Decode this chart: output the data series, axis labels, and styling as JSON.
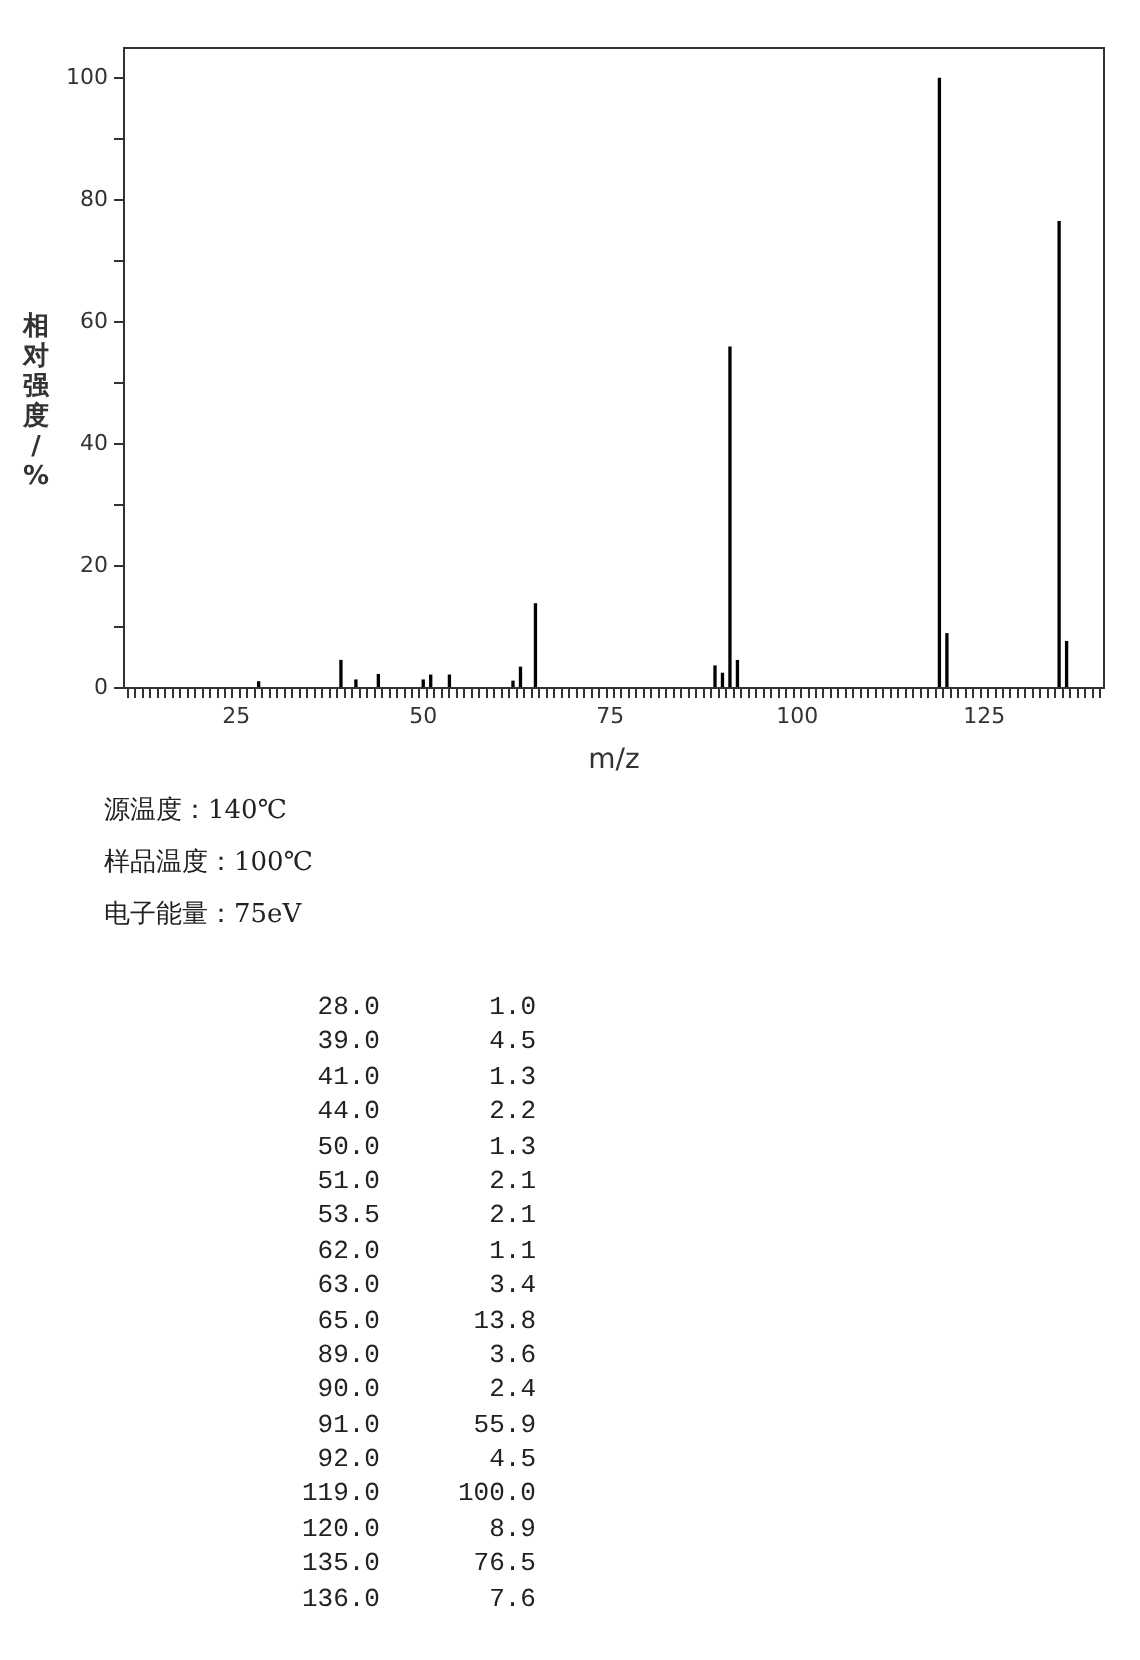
{
  "chart_data": {
    "type": "bar",
    "xlabel": "m/z",
    "ylabel": "相对强度/%",
    "x": [
      28.0,
      39.0,
      41.0,
      44.0,
      50.0,
      51.0,
      53.5,
      62.0,
      63.0,
      65.0,
      89.0,
      90.0,
      91.0,
      92.0,
      119.0,
      120.0,
      135.0,
      136.0
    ],
    "series": [
      {
        "color": "#000000",
        "values": [
          1.0,
          4.5,
          1.3,
          2.2,
          1.3,
          2.1,
          2.1,
          1.1,
          3.4,
          13.8,
          3.6,
          2.4,
          55.9,
          4.5,
          100.0,
          8.9,
          76.5,
          7.6
        ]
      }
    ],
    "xlim": [
      10,
      141
    ],
    "ylim": [
      0,
      105
    ],
    "xticks": [
      {
        "value": 11,
        "label": null
      },
      {
        "value": 12,
        "label": null
      },
      {
        "value": 13,
        "label": null
      },
      {
        "value": 14,
        "label": null
      },
      {
        "value": 15,
        "label": null
      },
      {
        "value": 16,
        "label": null
      },
      {
        "value": 17,
        "label": null
      },
      {
        "value": 18,
        "label": null
      },
      {
        "value": 19,
        "label": null
      },
      {
        "value": 20,
        "label": null
      },
      {
        "value": 21,
        "label": null
      },
      {
        "value": 22,
        "label": null
      },
      {
        "value": 23,
        "label": null
      },
      {
        "value": 24,
        "label": null
      },
      25,
      {
        "value": 26,
        "label": null
      },
      {
        "value": 27,
        "label": null
      },
      {
        "value": 28,
        "label": null
      },
      {
        "value": 29,
        "label": null
      },
      {
        "value": 30,
        "label": null
      },
      {
        "value": 31,
        "label": null
      },
      {
        "value": 32,
        "label": null
      },
      {
        "value": 33,
        "label": null
      },
      {
        "value": 34,
        "label": null
      },
      {
        "value": 35,
        "label": null
      },
      {
        "value": 36,
        "label": null
      },
      {
        "value": 37,
        "label": null
      },
      {
        "value": 38,
        "label": null
      },
      {
        "value": 39,
        "label": null
      },
      {
        "value": 40,
        "label": null
      },
      {
        "value": 41,
        "label": null
      },
      {
        "value": 42,
        "label": null
      },
      {
        "value": 43,
        "label": null
      },
      {
        "value": 44,
        "label": null
      },
      {
        "value": 45,
        "label": null
      },
      {
        "value": 46,
        "label": null
      },
      {
        "value": 47,
        "label": null
      },
      {
        "value": 48,
        "label": null
      },
      {
        "value": 49,
        "label": null
      },
      50,
      {
        "value": 51,
        "label": null
      },
      {
        "value": 52,
        "label": null
      },
      {
        "value": 53,
        "label": null
      },
      {
        "value": 54,
        "label": null
      },
      {
        "value": 55,
        "label": null
      },
      {
        "value": 56,
        "label": null
      },
      {
        "value": 57,
        "label": null
      },
      {
        "value": 58,
        "label": null
      },
      {
        "value": 59,
        "label": null
      },
      {
        "value": 60,
        "label": null
      },
      {
        "value": 61,
        "label": null
      },
      {
        "value": 62,
        "label": null
      },
      {
        "value": 63,
        "label": null
      },
      {
        "value": 64,
        "label": null
      },
      {
        "value": 65,
        "label": null
      },
      {
        "value": 66,
        "label": null
      },
      {
        "value": 67,
        "label": null
      },
      {
        "value": 68,
        "label": null
      },
      {
        "value": 69,
        "label": null
      },
      {
        "value": 70,
        "label": null
      },
      {
        "value": 71,
        "label": null
      },
      {
        "value": 72,
        "label": null
      },
      {
        "value": 73,
        "label": null
      },
      {
        "value": 74,
        "label": null
      },
      75,
      {
        "value": 76,
        "label": null
      },
      {
        "value": 77,
        "label": null
      },
      {
        "value": 78,
        "label": null
      },
      {
        "value": 79,
        "label": null
      },
      {
        "value": 80,
        "label": null
      },
      {
        "value": 81,
        "label": null
      },
      {
        "value": 82,
        "label": null
      },
      {
        "value": 83,
        "label": null
      },
      {
        "value": 84,
        "label": null
      },
      {
        "value": 85,
        "label": null
      },
      {
        "value": 86,
        "label": null
      },
      {
        "value": 87,
        "label": null
      },
      {
        "value": 88,
        "label": null
      },
      {
        "value": 89,
        "label": null
      },
      {
        "value": 90,
        "label": null
      },
      {
        "value": 91,
        "label": null
      },
      {
        "value": 92,
        "label": null
      },
      {
        "value": 93,
        "label": null
      },
      {
        "value": 94,
        "label": null
      },
      {
        "value": 95,
        "label": null
      },
      {
        "value": 96,
        "label": null
      },
      {
        "value": 97,
        "label": null
      },
      {
        "value": 98,
        "label": null
      },
      {
        "value": 99,
        "label": null
      },
      100,
      {
        "value": 101,
        "label": null
      },
      {
        "value": 102,
        "label": null
      },
      {
        "value": 103,
        "label": null
      },
      {
        "value": 104,
        "label": null
      },
      {
        "value": 105,
        "label": null
      },
      {
        "value": 106,
        "label": null
      },
      {
        "value": 107,
        "label": null
      },
      {
        "value": 108,
        "label": null
      },
      {
        "value": 109,
        "label": null
      },
      {
        "value": 110,
        "label": null
      },
      {
        "value": 111,
        "label": null
      },
      {
        "value": 112,
        "label": null
      },
      {
        "value": 113,
        "label": null
      },
      {
        "value": 114,
        "label": null
      },
      {
        "value": 115,
        "label": null
      },
      {
        "value": 116,
        "label": null
      },
      {
        "value": 117,
        "label": null
      },
      {
        "value": 118,
        "label": null
      },
      {
        "value": 119,
        "label": null
      },
      {
        "value": 120,
        "label": null
      },
      {
        "value": 121,
        "label": null
      },
      {
        "value": 122,
        "label": null
      },
      {
        "value": 123,
        "label": null
      },
      {
        "value": 124,
        "label": null
      },
      125,
      {
        "value": 126,
        "label": null
      },
      {
        "value": 127,
        "label": null
      },
      {
        "value": 128,
        "label": null
      },
      {
        "value": 129,
        "label": null
      },
      {
        "value": 130,
        "label": null
      },
      {
        "value": 131,
        "label": null
      },
      {
        "value": 132,
        "label": null
      },
      {
        "value": 133,
        "label": null
      },
      {
        "value": 134,
        "label": null
      },
      {
        "value": 135,
        "label": null
      },
      {
        "value": 136,
        "label": null
      },
      {
        "value": 137,
        "label": null
      },
      {
        "value": 138,
        "label": null
      },
      {
        "value": 139,
        "label": null
      },
      {
        "value": 140,
        "label": null
      }
    ],
    "yticks": [
      0,
      {
        "value": 10,
        "label": null
      },
      20,
      {
        "value": 30,
        "label": null
      },
      40,
      {
        "value": 50,
        "label": null
      },
      60,
      {
        "value": 70,
        "label": null
      },
      80,
      {
        "value": 90,
        "label": null
      },
      100
    ],
    "grid": false,
    "legend": false,
    "annotations": [
      "源温度：140℃",
      "样品温度：100℃",
      "电子能量：75eV",
      "28.0       1.0",
      "39.0       4.5",
      "41.0       1.3",
      "44.0       2.2",
      "50.0       1.3",
      "51.0       2.1",
      "53.5       2.1",
      "62.0       1.1",
      "63.0       3.4",
      "65.0      13.8",
      "89.0       3.6",
      "90.0       2.4",
      "91.0      55.9",
      "92.0       4.5",
      "119.0     100.0",
      "120.0       8.9",
      "135.0      76.5",
      "136.0       7.6"
    ]
  }
}
